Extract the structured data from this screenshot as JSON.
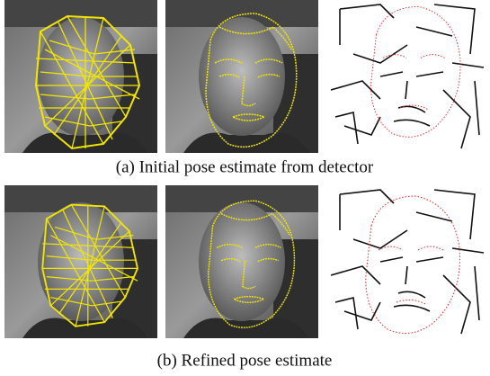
{
  "figure": {
    "rows": [
      {
        "caption": "(a) Initial pose estimate from detector"
      },
      {
        "caption": "(b) Refined pose estimate"
      }
    ]
  }
}
